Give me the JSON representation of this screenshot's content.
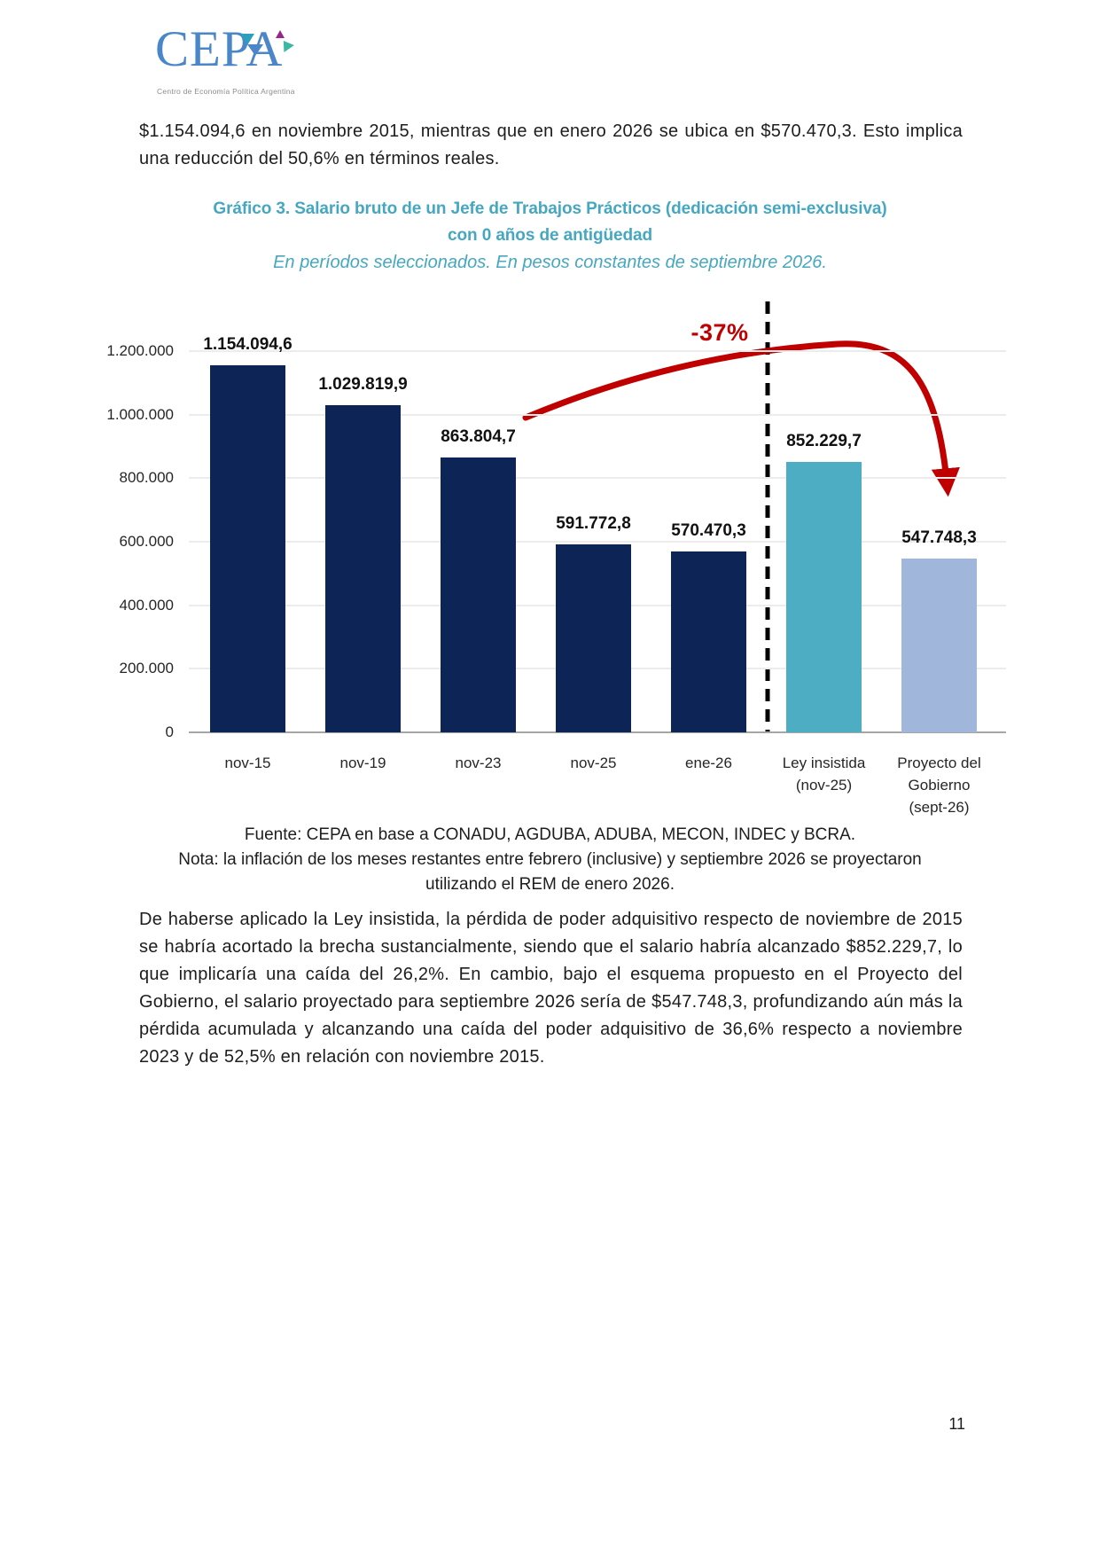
{
  "logo": {
    "name": "CEPA",
    "tagline": "Centro de Economía Política Argentina"
  },
  "intro_paragraph": "$1.154.094,6 en noviembre 2015, mientras que en enero 2026 se ubica en $570.470,3. Esto implica una reducción del 50,6% en términos reales.",
  "chart": {
    "title_line1": "Gráfico 3. Salario bruto de un Jefe de Trabajos Prácticos (dedicación semi-exclusiva)",
    "title_line2": "con 0 años de antigüedad",
    "subtitle": "En períodos seleccionados. En pesos constantes de septiembre 2026."
  },
  "chart_data": {
    "type": "bar",
    "title": "Gráfico 3. Salario bruto de un Jefe de Trabajos Prácticos (dedicación semi-exclusiva) con 0 años de antigüedad",
    "subtitle": "En períodos seleccionados. En pesos constantes de septiembre 2026.",
    "categories": [
      [
        "nov-15"
      ],
      [
        "nov-19"
      ],
      [
        "nov-23"
      ],
      [
        "nov-25"
      ],
      [
        "ene-26"
      ],
      [
        "Ley insistida",
        "(nov-25)"
      ],
      [
        "Proyecto del",
        "Gobierno",
        "(sept-26)"
      ]
    ],
    "values": [
      1154094.6,
      1029819.9,
      863804.7,
      591772.8,
      570470.3,
      852229.7,
      547748.3
    ],
    "value_labels": [
      "1.154.094,6",
      "1.029.819,9",
      "863.804,7",
      "591.772,8",
      "570.470,3",
      "852.229,7",
      "547.748,3"
    ],
    "bar_colors": [
      "#0D2456",
      "#0D2456",
      "#0D2456",
      "#0D2456",
      "#0D2456",
      "#4DAEC3",
      "#A0B7DB"
    ],
    "y_ticks": [
      {
        "value": 0,
        "label": "0"
      },
      {
        "value": 200000,
        "label": "200.000"
      },
      {
        "value": 400000,
        "label": "400.000"
      },
      {
        "value": 600000,
        "label": "600.000"
      },
      {
        "value": 800000,
        "label": "800.000"
      },
      {
        "value": 1000000,
        "label": "1.000.000"
      },
      {
        "value": 1200000,
        "label": "1.200.000"
      }
    ],
    "ylim": [
      0,
      1250000
    ],
    "xlabel": "",
    "ylabel": "",
    "grid": true,
    "legend": false,
    "annotation": {
      "text": "-37%",
      "color": "#C00000"
    },
    "separator": {
      "after_category": "ene-26",
      "style": "black dashed vertical line"
    }
  },
  "footnotes": {
    "source": "Fuente: CEPA en base a CONADU, AGDUBA, ADUBA, MECON, INDEC y BCRA.",
    "note": "Nota: la inflación de los meses restantes entre febrero (inclusive) y septiembre 2026 se proyectaron utilizando el REM de enero 2026."
  },
  "body_paragraph": "De haberse aplicado la Ley insistida, la pérdida de poder adquisitivo respecto de noviembre de 2015 se habría acortado la brecha sustancialmente, siendo que el salario habría alcanzado $852.229,7, lo que implicaría una caída del 26,2%. En cambio, bajo el esquema propuesto en el Proyecto del Gobierno, el salario proyectado para septiembre 2026 sería de $547.748,3, profundizando aún más la pérdida acumulada y alcanzando una caída del poder adquisitivo de 36,6% respecto a noviembre 2023 y de 52,5% en relación con noviembre 2015.",
  "page_number": "11",
  "colors": {
    "title_teal": "#46A7C1",
    "navy_bar": "#0D2456",
    "teal_bar": "#4DAEC3",
    "light_blue_bar": "#A0B7DB",
    "accent_red": "#C00000"
  }
}
